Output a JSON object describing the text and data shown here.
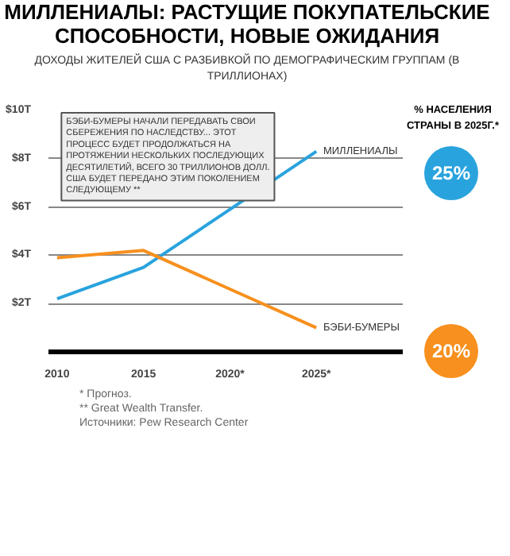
{
  "chart_data": {
    "type": "line",
    "title": "МИЛЛЕНИАЛЫ: РАСТУЩИЕ ПОКУПАТЕЛЬСКИЕ СПОСОБНОСТИ, НОВЫЕ ОЖИДАНИЯ",
    "subtitle": "ДОХОДЫ ЖИТЕЛЕЙ США С РАЗБИВКОЙ ПО ДЕМОГРАФИЧЕСКИМ ГРУППАМ (В ТРИЛЛИОНАХ)",
    "categories": [
      "2010",
      "2015",
      "2020*",
      "2025*"
    ],
    "series": [
      {
        "name": "МИЛЛЕНИАЛЫ",
        "color": "#29a3dd",
        "values": [
          2.2,
          3.5,
          5.9,
          8.3
        ]
      },
      {
        "name": "БЭБИ-БУМЕРЫ",
        "color": "#f7901e",
        "values": [
          3.9,
          4.2,
          2.6,
          1.0
        ]
      }
    ],
    "ylim": [
      0,
      10
    ],
    "yticks": [
      {
        "value": 2,
        "label": "$2T"
      },
      {
        "value": 4,
        "label": "$4T"
      },
      {
        "value": 6,
        "label": "$6T"
      },
      {
        "value": 8,
        "label": "$8T"
      },
      {
        "value": 10,
        "label": "$10T"
      }
    ],
    "grid": "y",
    "marker": "none",
    "line_style": "solid",
    "annotations": [
      "БЭБИ-БУМЕРЫ НАЧАЛИ ПЕРЕДАВАТЬ СВОИ СБЕРЕЖЕНИЯ ПО НАСЛЕДСТВУ... ЭТОТ ПРОЦЕСС БУДЕТ ПРОДОЛЖАТЬСЯ НА ПРОТЯЖЕНИИ НЕСКОЛЬКИХ ПОСЛЕДУЮЩИХ ДЕСЯТИЛЕТИЙ, ВСЕГО 30 ТРИЛЛИОНОВ ДОЛЛ. США БУДЕТ ПЕРЕДАНО ЭТИМ ПОКОЛЕНИЕМ СЛЕДУЮЩЕМУ **",
      "% НАСЕЛЕНИЯ СТРАНЫ В 2025Г.*",
      "25%",
      "20%",
      "* Прогноз.",
      "** Great Wealth Transfer.",
      "Источники: Pew Research Center"
    ]
  }
}
